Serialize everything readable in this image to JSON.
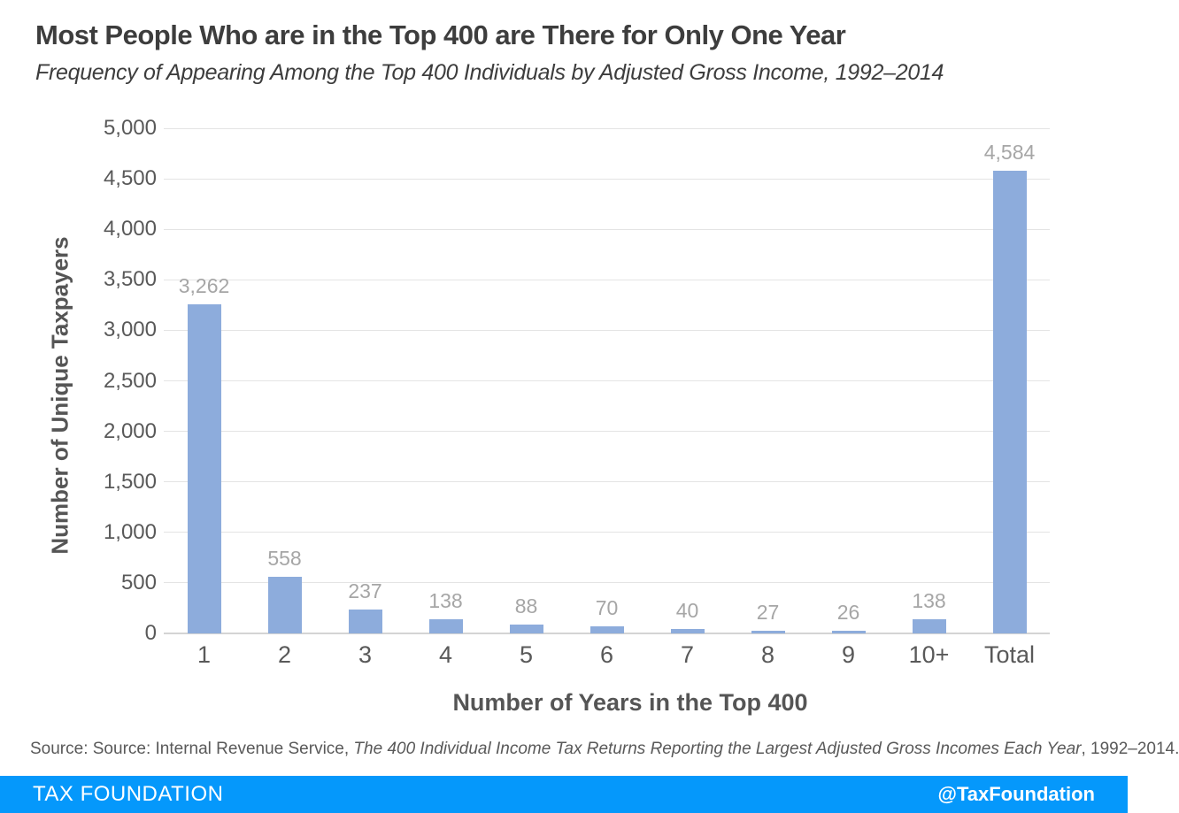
{
  "chart_data": {
    "type": "bar",
    "title": "Most People Who are in the Top 400 are There for Only One Year",
    "subtitle": "Frequency of Appearing Among the Top 400 Individuals by Adjusted Gross Income, 1992–2014",
    "categories": [
      "1",
      "2",
      "3",
      "4",
      "5",
      "6",
      "7",
      "8",
      "9",
      "10+",
      "Total"
    ],
    "values": [
      3262,
      558,
      237,
      138,
      88,
      70,
      40,
      27,
      26,
      138,
      4584
    ],
    "value_labels": [
      "3,262",
      "558",
      "237",
      "138",
      "88",
      "70",
      "40",
      "27",
      "26",
      "138",
      "4,584"
    ],
    "xlabel": "Number of Years in the Top 400",
    "ylabel": "Number of Unique Taxpayers",
    "ylim": [
      0,
      5000
    ],
    "ytick_step": 500,
    "y_ticks": [
      "0",
      "500",
      "1,000",
      "1,500",
      "2,000",
      "2,500",
      "3,000",
      "3,500",
      "4,000",
      "4,500",
      "5,000"
    ],
    "grid": true,
    "legend": "none",
    "bar_color": "#8dacdc",
    "value_label_color": "#a6a6a6",
    "tick_label_color": "#595959",
    "gridline_color": "#e4e4e4",
    "axis_line_color": "#d4d4d4"
  },
  "source": {
    "prefix": "Source: Source: Internal Revenue Service, ",
    "italic": "The 400 Individual Income Tax Returns Reporting the Largest Adjusted Gross Incomes Each Year",
    "suffix": ", 1992–2014."
  },
  "footer": {
    "brand": "TAX FOUNDATION",
    "handle": "@TaxFoundation",
    "bar_color": "#0598fb",
    "text_color": "#ffffff"
  }
}
